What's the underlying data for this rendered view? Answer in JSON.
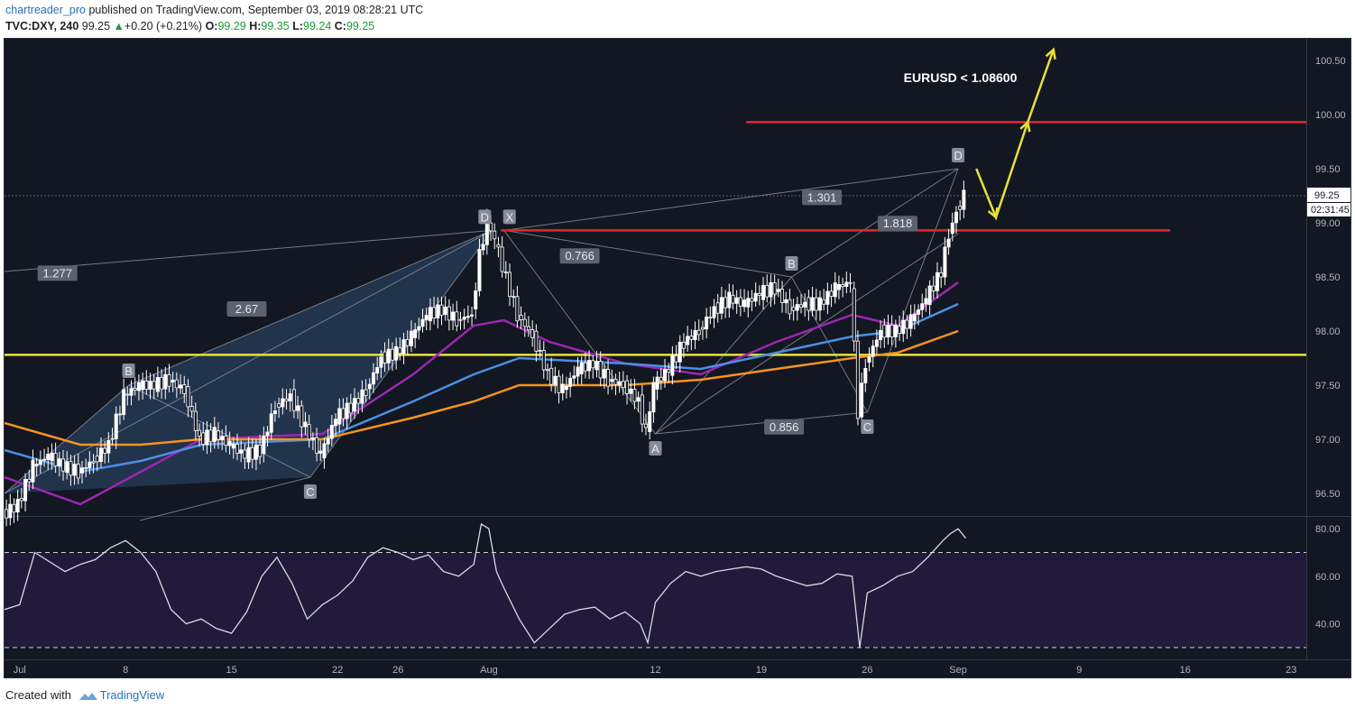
{
  "header": {
    "author": "chartreader_pro",
    "published_text": "published on TradingView.com, September 03, 2019 08:28:21 UTC",
    "symbol": "TVC:DXY, 240",
    "last": "99.25",
    "change": "+0.20 (+0.21%)",
    "o_label": "O:",
    "o_value": "99.29",
    "h_label": "H:",
    "h_value": "99.35",
    "l_label": "L:",
    "l_value": "99.24",
    "c_label": "C:",
    "c_value": "99.25"
  },
  "footer": {
    "created_with": "Created with",
    "brand": "TradingView"
  },
  "colors": {
    "background": "#131722",
    "price_pane": "#131722",
    "rsi_band": "#211a3a",
    "ema_purple": "#9c27b0",
    "ema_blue": "#4a90e2",
    "ema_orange": "#f7931e",
    "resistance_red": "#e8262c",
    "support_yellow": "#e8e03a",
    "arrow_yellow": "#e8e03a",
    "candles": "#ffffff",
    "pattern_fill": "#2f4a70"
  },
  "chart_data": {
    "type": "line",
    "symbol": "TVC:DXY",
    "interval": "240",
    "ylim": [
      96.3,
      100.7
    ],
    "y_ticks": [
      "100.50",
      "100.00",
      "99.50",
      "99.00",
      "98.50",
      "98.00",
      "97.50",
      "97.00",
      "96.50"
    ],
    "y_tick_values": [
      100.5,
      100.0,
      99.5,
      99.0,
      98.5,
      98.0,
      97.5,
      97.0,
      96.5
    ],
    "x_ticks": [
      "Jul",
      "8",
      "15",
      "22",
      "26",
      "Aug",
      "12",
      "19",
      "26",
      "Sep",
      "9",
      "16",
      "23"
    ],
    "x_range_days": [
      -1,
      85
    ],
    "x_tick_days": [
      0,
      7,
      14,
      21,
      25,
      31,
      42,
      49,
      56,
      62,
      70,
      77,
      84
    ],
    "price_label": "99.25",
    "countdown_label": "02:31:45",
    "annotation_text": "EURUSD < 1.08600",
    "horizontal_levels": [
      {
        "color": "red",
        "value": 99.93,
        "from_day": 48,
        "to_day": 85
      },
      {
        "color": "red",
        "value": 98.93,
        "from_day": 31.8,
        "to_day": 76
      },
      {
        "color": "yellow",
        "value": 97.78,
        "from_day": -1,
        "to_day": 85
      }
    ],
    "close_series": {
      "x_days": [
        -1,
        0,
        1,
        2,
        3,
        4,
        5,
        6,
        7,
        8,
        9,
        10,
        11,
        12,
        13,
        14,
        15,
        16,
        17,
        18,
        19,
        20,
        21,
        22,
        23,
        24,
        25,
        26,
        27,
        28,
        29,
        30,
        30.5,
        31,
        31.5,
        32,
        33,
        34,
        35,
        36,
        37,
        38,
        39,
        40,
        41,
        41.5,
        42,
        43,
        44,
        45,
        46,
        47,
        48,
        49,
        50,
        51,
        52,
        53,
        54,
        55,
        55.5,
        56,
        57,
        58,
        59,
        60,
        61,
        61.5,
        62,
        62.5
      ],
      "values": [
        96.3,
        96.4,
        96.75,
        96.85,
        96.75,
        96.7,
        96.8,
        96.95,
        97.4,
        97.5,
        97.5,
        97.55,
        97.45,
        97.0,
        97.05,
        96.95,
        96.85,
        96.9,
        97.3,
        97.4,
        97.1,
        96.85,
        97.2,
        97.3,
        97.45,
        97.75,
        97.8,
        97.95,
        98.15,
        98.2,
        98.1,
        98.15,
        98.7,
        99.0,
        98.85,
        98.6,
        98.15,
        97.95,
        97.6,
        97.45,
        97.65,
        97.7,
        97.55,
        97.5,
        97.35,
        97.05,
        97.5,
        97.65,
        97.9,
        98.0,
        98.2,
        98.3,
        98.25,
        98.35,
        98.4,
        98.2,
        98.25,
        98.25,
        98.4,
        98.45,
        97.25,
        97.7,
        98.0,
        98.0,
        98.1,
        98.3,
        98.55,
        98.9,
        99.1,
        99.25
      ]
    },
    "ema_series": [
      {
        "color": "purple",
        "values_at_days": [
          [
            -1,
            96.65
          ],
          [
            4,
            96.4
          ],
          [
            8,
            96.7
          ],
          [
            12,
            97.0
          ],
          [
            20,
            97.05
          ],
          [
            26,
            97.6
          ],
          [
            30,
            98.05
          ],
          [
            32,
            98.1
          ],
          [
            35,
            97.9
          ],
          [
            40,
            97.7
          ],
          [
            45,
            97.6
          ],
          [
            50,
            97.9
          ],
          [
            55,
            98.15
          ],
          [
            58,
            98.05
          ],
          [
            62,
            98.45
          ]
        ]
      },
      {
        "color": "blue",
        "values_at_days": [
          [
            -1,
            96.9
          ],
          [
            4,
            96.7
          ],
          [
            8,
            96.8
          ],
          [
            12,
            96.95
          ],
          [
            20,
            97.0
          ],
          [
            26,
            97.35
          ],
          [
            30,
            97.6
          ],
          [
            33,
            97.75
          ],
          [
            40,
            97.7
          ],
          [
            45,
            97.65
          ],
          [
            50,
            97.8
          ],
          [
            55,
            97.95
          ],
          [
            58,
            98.0
          ],
          [
            62,
            98.25
          ]
        ]
      },
      {
        "color": "orange",
        "values_at_days": [
          [
            -1,
            97.15
          ],
          [
            4,
            96.95
          ],
          [
            8,
            96.95
          ],
          [
            12,
            97.0
          ],
          [
            20,
            97.0
          ],
          [
            26,
            97.2
          ],
          [
            30,
            97.35
          ],
          [
            33,
            97.5
          ],
          [
            40,
            97.5
          ],
          [
            45,
            97.55
          ],
          [
            50,
            97.65
          ],
          [
            55,
            97.75
          ],
          [
            58,
            97.8
          ],
          [
            62,
            98.0
          ]
        ]
      }
    ],
    "harmonic_patterns": {
      "points": [
        {
          "label": "B",
          "day": 7.2,
          "value": 97.5
        },
        {
          "label": "C",
          "day": 19.2,
          "value": 96.65
        },
        {
          "label": "D",
          "day": 31.2,
          "value": 98.93
        },
        {
          "label": "X",
          "day": 32.0,
          "value": 98.93
        },
        {
          "label": "A",
          "day": 42.0,
          "value": 97.05
        },
        {
          "label": "B",
          "day": 51.0,
          "value": 98.5
        },
        {
          "label": "C",
          "day": 56.0,
          "value": 97.25
        },
        {
          "label": "D",
          "day": 62.0,
          "value": 99.5
        }
      ],
      "ratios": [
        "1.277",
        "2.67",
        "0.766",
        "1.301",
        "1.818",
        "0.856"
      ]
    },
    "rsi": {
      "ylim": [
        25,
        85
      ],
      "y_ticks": [
        "80.00",
        "60.00",
        "40.00"
      ],
      "y_tick_values": [
        80,
        60,
        40
      ],
      "band": [
        30,
        70
      ],
      "x_days": [
        -1,
        0,
        1,
        2,
        3,
        4,
        5,
        6,
        7,
        8,
        9,
        10,
        11,
        12,
        13,
        14,
        15,
        16,
        17,
        18,
        19,
        20,
        21,
        22,
        23,
        24,
        25,
        26,
        27,
        28,
        29,
        30,
        30.5,
        31,
        31.5,
        32,
        33,
        34,
        35,
        36,
        37,
        38,
        39,
        40,
        41,
        41.5,
        42,
        43,
        44,
        45,
        46,
        47,
        48,
        49,
        50,
        51,
        52,
        53,
        54,
        55,
        55.5,
        56,
        57,
        58,
        59,
        60,
        61,
        61.5,
        62,
        62.5
      ],
      "values": [
        46,
        48,
        70,
        66,
        62,
        65,
        67,
        72,
        75,
        70,
        62,
        46,
        40,
        42,
        38,
        36,
        45,
        60,
        68,
        57,
        42,
        48,
        52,
        58,
        68,
        72,
        70,
        67,
        69,
        62,
        60,
        65,
        82,
        80,
        62,
        55,
        42,
        32,
        38,
        44,
        46,
        47,
        42,
        45,
        40,
        32,
        49,
        57,
        62,
        60,
        62,
        63,
        64,
        63,
        60,
        58,
        56,
        57,
        61,
        60,
        30,
        53,
        56,
        60,
        62,
        68,
        75,
        78,
        80,
        76
      ]
    }
  }
}
